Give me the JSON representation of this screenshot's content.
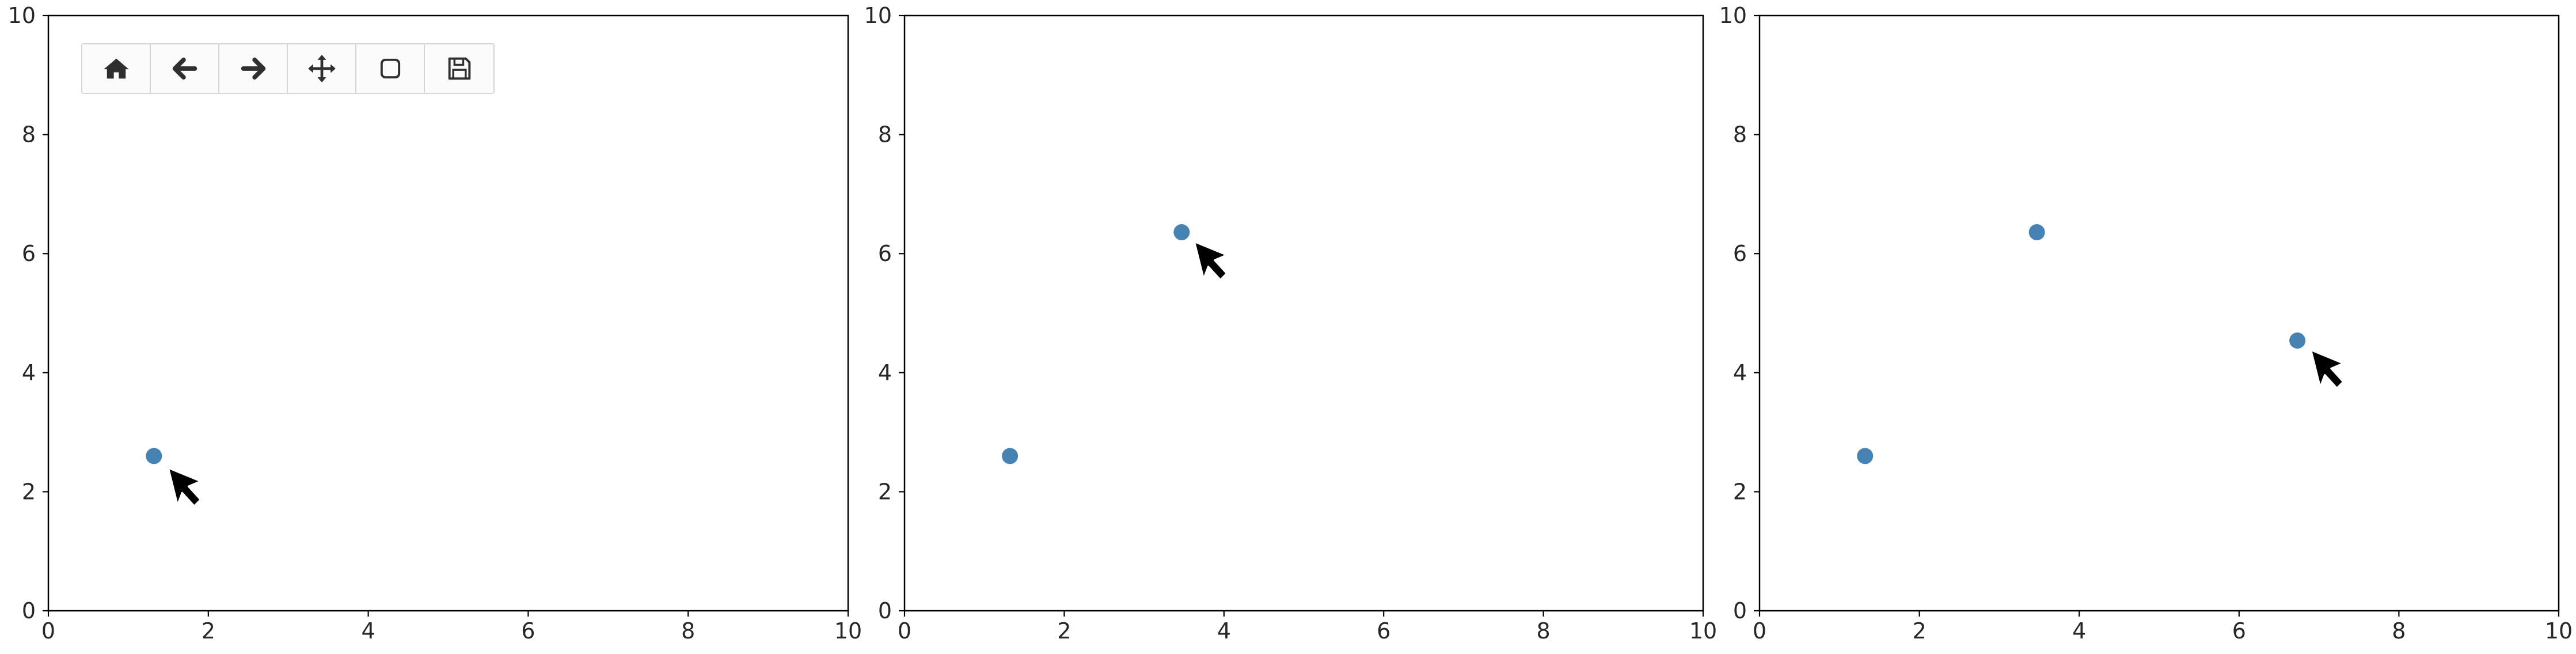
{
  "toolbar": {
    "buttons": [
      {
        "id": "home",
        "icon": "home-icon"
      },
      {
        "id": "back",
        "icon": "arrow-left-icon"
      },
      {
        "id": "forward",
        "icon": "arrow-right-icon"
      },
      {
        "id": "pan",
        "icon": "move-arrows-icon"
      },
      {
        "id": "zoom",
        "icon": "zoom-rect-icon"
      },
      {
        "id": "save",
        "icon": "floppy-disk-icon"
      }
    ]
  },
  "colors": {
    "point": "#4682b4",
    "axis": "#000000",
    "cursor": "#000000"
  },
  "chart_data": [
    {
      "type": "scatter",
      "xlim": [
        0,
        10
      ],
      "ylim": [
        0,
        10
      ],
      "xticks": [
        "0",
        "2",
        "4",
        "6",
        "8",
        "10"
      ],
      "yticks": [
        "0",
        "2",
        "4",
        "6",
        "8",
        "10"
      ],
      "grid": false,
      "points": [
        {
          "x": 1.32,
          "y": 2.6
        }
      ],
      "cursor": {
        "x": 1.5,
        "y": 2.4
      }
    },
    {
      "type": "scatter",
      "xlim": [
        0,
        10
      ],
      "ylim": [
        0,
        10
      ],
      "xticks": [
        "0",
        "2",
        "4",
        "6",
        "8",
        "10"
      ],
      "yticks": [
        "0",
        "2",
        "4",
        "6",
        "8",
        "10"
      ],
      "grid": false,
      "points": [
        {
          "x": 1.32,
          "y": 2.6
        },
        {
          "x": 3.47,
          "y": 6.36
        }
      ],
      "cursor": {
        "x": 3.63,
        "y": 6.2
      }
    },
    {
      "type": "scatter",
      "xlim": [
        0,
        10
      ],
      "ylim": [
        0,
        10
      ],
      "xticks": [
        "0",
        "2",
        "4",
        "6",
        "8",
        "10"
      ],
      "yticks": [
        "0",
        "2",
        "4",
        "6",
        "8",
        "10"
      ],
      "grid": false,
      "points": [
        {
          "x": 1.32,
          "y": 2.6
        },
        {
          "x": 3.47,
          "y": 6.36
        },
        {
          "x": 6.73,
          "y": 4.54
        }
      ],
      "cursor": {
        "x": 6.9,
        "y": 4.38
      }
    }
  ]
}
